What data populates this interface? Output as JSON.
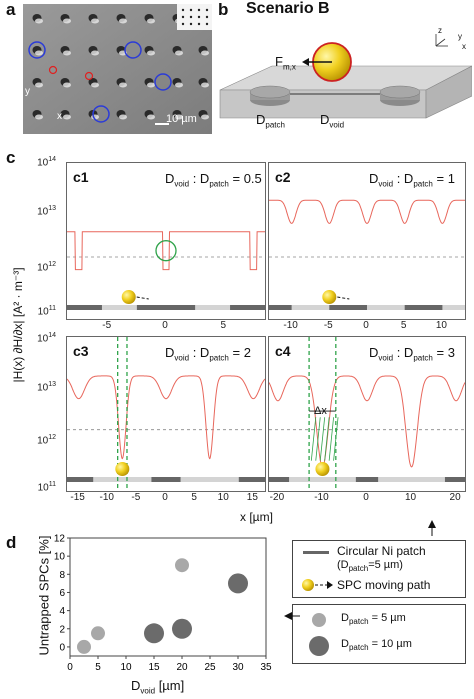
{
  "panel_labels": {
    "a": "a",
    "b": "b",
    "c": "c",
    "d": "d"
  },
  "panel_a": {
    "scale_bar": "10 µm",
    "axis_x": "x",
    "axis_y": "y"
  },
  "panel_b": {
    "title": "Scenario B",
    "force": "F",
    "force_sub": "m,x",
    "d_patch": "D",
    "d_patch_sub": "patch",
    "d_void": "D",
    "d_void_sub": "void",
    "axes": [
      "z",
      "y",
      "x"
    ]
  },
  "panel_c": {
    "subpanels": [
      {
        "label": "c1",
        "ratio_a": "D",
        "ratio_a_sub": "void",
        "sep": " : ",
        "ratio_b": "D",
        "ratio_b_sub": "patch",
        "ratio_val": " = 0.5",
        "xticks": [
          "-5",
          "0",
          "5"
        ]
      },
      {
        "label": "c2",
        "ratio_a": "D",
        "ratio_a_sub": "void",
        "sep": " : ",
        "ratio_b": "D",
        "ratio_b_sub": "patch",
        "ratio_val": " = 1",
        "xticks": [
          "-10",
          "-5",
          "0",
          "5",
          "10"
        ]
      },
      {
        "label": "c3",
        "ratio_a": "D",
        "ratio_a_sub": "void",
        "sep": " : ",
        "ratio_b": "D",
        "ratio_b_sub": "patch",
        "ratio_val": " = 2",
        "xticks": [
          "-15",
          "-10",
          "-5",
          "0",
          "5",
          "10",
          "15"
        ]
      },
      {
        "label": "c4",
        "ratio_a": "D",
        "ratio_a_sub": "void",
        "sep": " : ",
        "ratio_b": "D",
        "ratio_b_sub": "patch",
        "ratio_val": " = 3",
        "xticks": [
          "-20",
          "-10",
          "0",
          "10",
          "20"
        ],
        "delta": "Δx"
      }
    ],
    "yticks": [
      {
        "base": "10",
        "exp": "14"
      },
      {
        "base": "10",
        "exp": "13"
      },
      {
        "base": "10",
        "exp": "12"
      },
      {
        "base": "10",
        "exp": "11"
      }
    ],
    "ylabel": "|H(x) ∂H/∂x| [A² · m⁻³]",
    "xlabel": "x [µm]"
  },
  "chart_data": {
    "type": "scatter",
    "xlabel": "D",
    "xlabel_sub": "void",
    "xlabel_unit": " [µm]",
    "ylabel": "Untrapped SPCs [%]",
    "xlim": [
      0,
      35
    ],
    "ylim": [
      -1,
      12
    ],
    "xticks": [
      "0",
      "5",
      "10",
      "15",
      "20",
      "25",
      "30",
      "35"
    ],
    "yticks": [
      "0",
      "2",
      "4",
      "6",
      "8",
      "10",
      "12"
    ],
    "series": [
      {
        "name": "D",
        "name_sub": "patch",
        "name_rest": " = 5 µm",
        "color": "#a8a8a8",
        "r": 7,
        "x": [
          2.5,
          5,
          20
        ],
        "y": [
          0,
          1.5,
          9
        ]
      },
      {
        "name": "D",
        "name_sub": "patch",
        "name_rest": " = 10 µm",
        "color": "#6b6b6b",
        "r": 10,
        "x": [
          15,
          20,
          30
        ],
        "y": [
          1.5,
          2,
          7
        ]
      }
    ]
  },
  "legend": {
    "ni_patch": "Circular Ni patch",
    "ni_patch_note": "(D",
    "ni_patch_note_sub": "patch",
    "ni_patch_note_end": "=5 µm)",
    "spc_path": "SPC moving path"
  }
}
